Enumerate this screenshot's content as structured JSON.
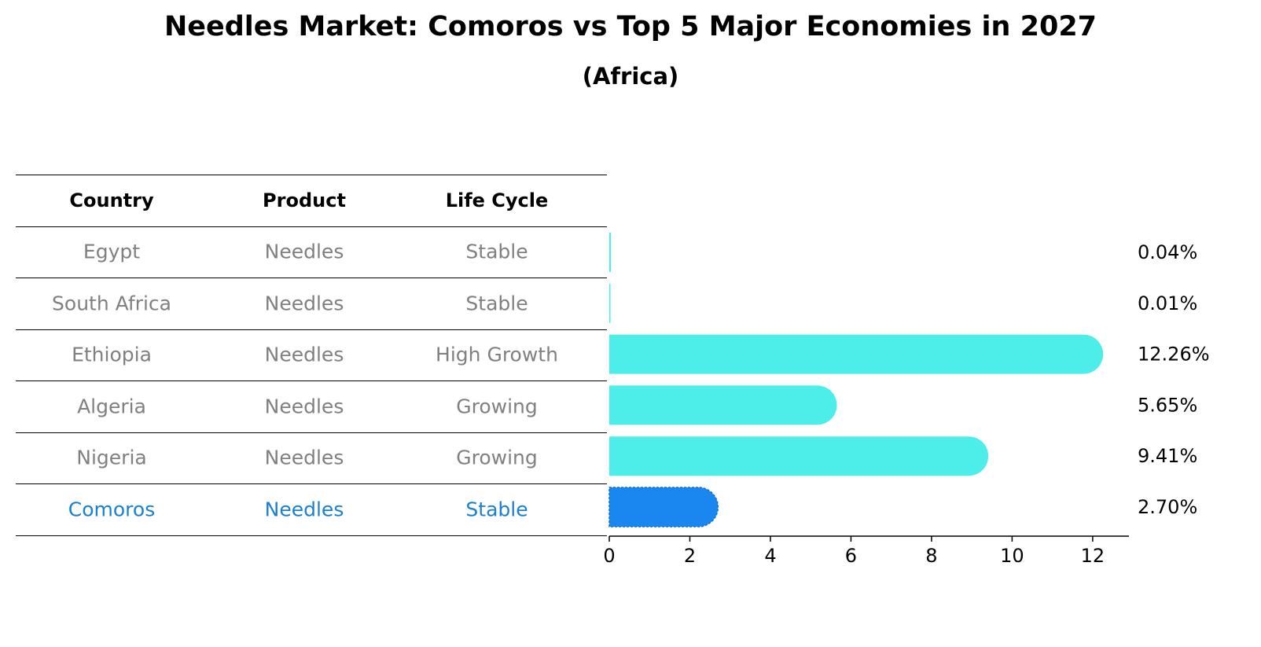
{
  "chart_data": {
    "type": "bar",
    "orientation": "horizontal",
    "title": "Needles Market: Comoros vs Top 5 Major Economies in 2027",
    "subtitle": "(Africa)",
    "table": {
      "headers": [
        "Country",
        "Product",
        "Life Cycle"
      ],
      "rows": [
        {
          "country": "Egypt",
          "product": "Needles",
          "life_cycle": "Stable",
          "highlight": false
        },
        {
          "country": "South Africa",
          "product": "Needles",
          "life_cycle": "Stable",
          "highlight": false
        },
        {
          "country": "Ethiopia",
          "product": "Needles",
          "life_cycle": "High Growth",
          "highlight": false
        },
        {
          "country": "Algeria",
          "product": "Needles",
          "life_cycle": "Growing",
          "highlight": false
        },
        {
          "country": "Nigeria",
          "product": "Needles",
          "life_cycle": "Growing",
          "highlight": false
        },
        {
          "country": "Comoros",
          "product": "Needles",
          "life_cycle": "Stable",
          "highlight": true
        }
      ]
    },
    "categories": [
      "Egypt",
      "South Africa",
      "Ethiopia",
      "Algeria",
      "Nigeria",
      "Comoros"
    ],
    "values": [
      0.04,
      0.01,
      12.26,
      5.65,
      9.41,
      2.7
    ],
    "value_labels": [
      "0.04%",
      "0.01%",
      "12.26%",
      "5.65%",
      "9.41%",
      "2.70%"
    ],
    "xlim": [
      0,
      12.9
    ],
    "xticks": [
      0,
      2,
      4,
      6,
      8,
      10,
      12
    ],
    "colors": {
      "default": "#4dede9",
      "highlight": "#1a86f0",
      "highlight_text": "#1a80d0",
      "muted_text": "#808080"
    }
  }
}
